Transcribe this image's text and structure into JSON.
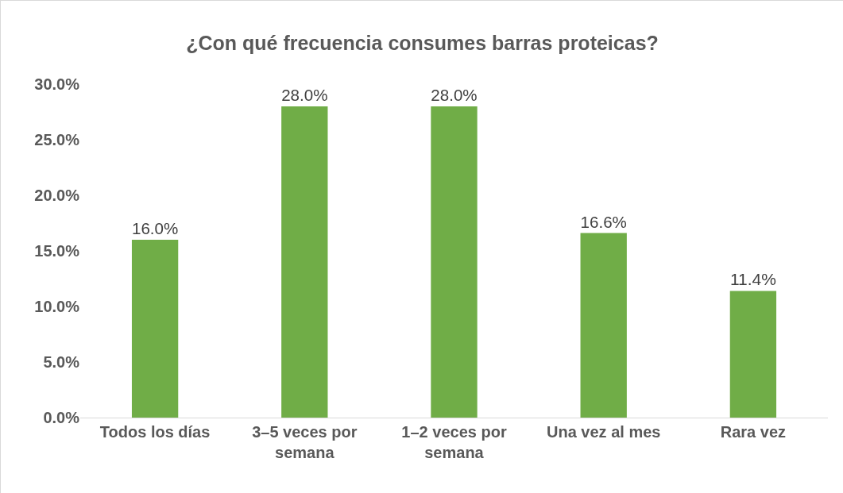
{
  "chart_data": {
    "type": "bar",
    "title": "¿Con qué frecuencia consumes barras proteicas?",
    "categories": [
      "Todos los días",
      "3–5 veces por semana",
      "1–2 veces por semana",
      "Una vez al mes",
      "Rara vez"
    ],
    "values": [
      16.0,
      28.0,
      28.0,
      16.6,
      11.4
    ],
    "value_labels": [
      "16.0%",
      "28.0%",
      "28.0%",
      "16.6%",
      "11.4%"
    ],
    "color": "#70ad47",
    "ylim": [
      0,
      30
    ],
    "yticks": [
      {
        "value": 0,
        "label": "0.0%"
      },
      {
        "value": 5,
        "label": "5.0%"
      },
      {
        "value": 10,
        "label": "10.0%"
      },
      {
        "value": 15,
        "label": "15.0%"
      },
      {
        "value": 20,
        "label": "20.0%"
      },
      {
        "value": 25,
        "label": "25.0%"
      },
      {
        "value": 30,
        "label": "30.0%"
      }
    ],
    "grid": false
  }
}
